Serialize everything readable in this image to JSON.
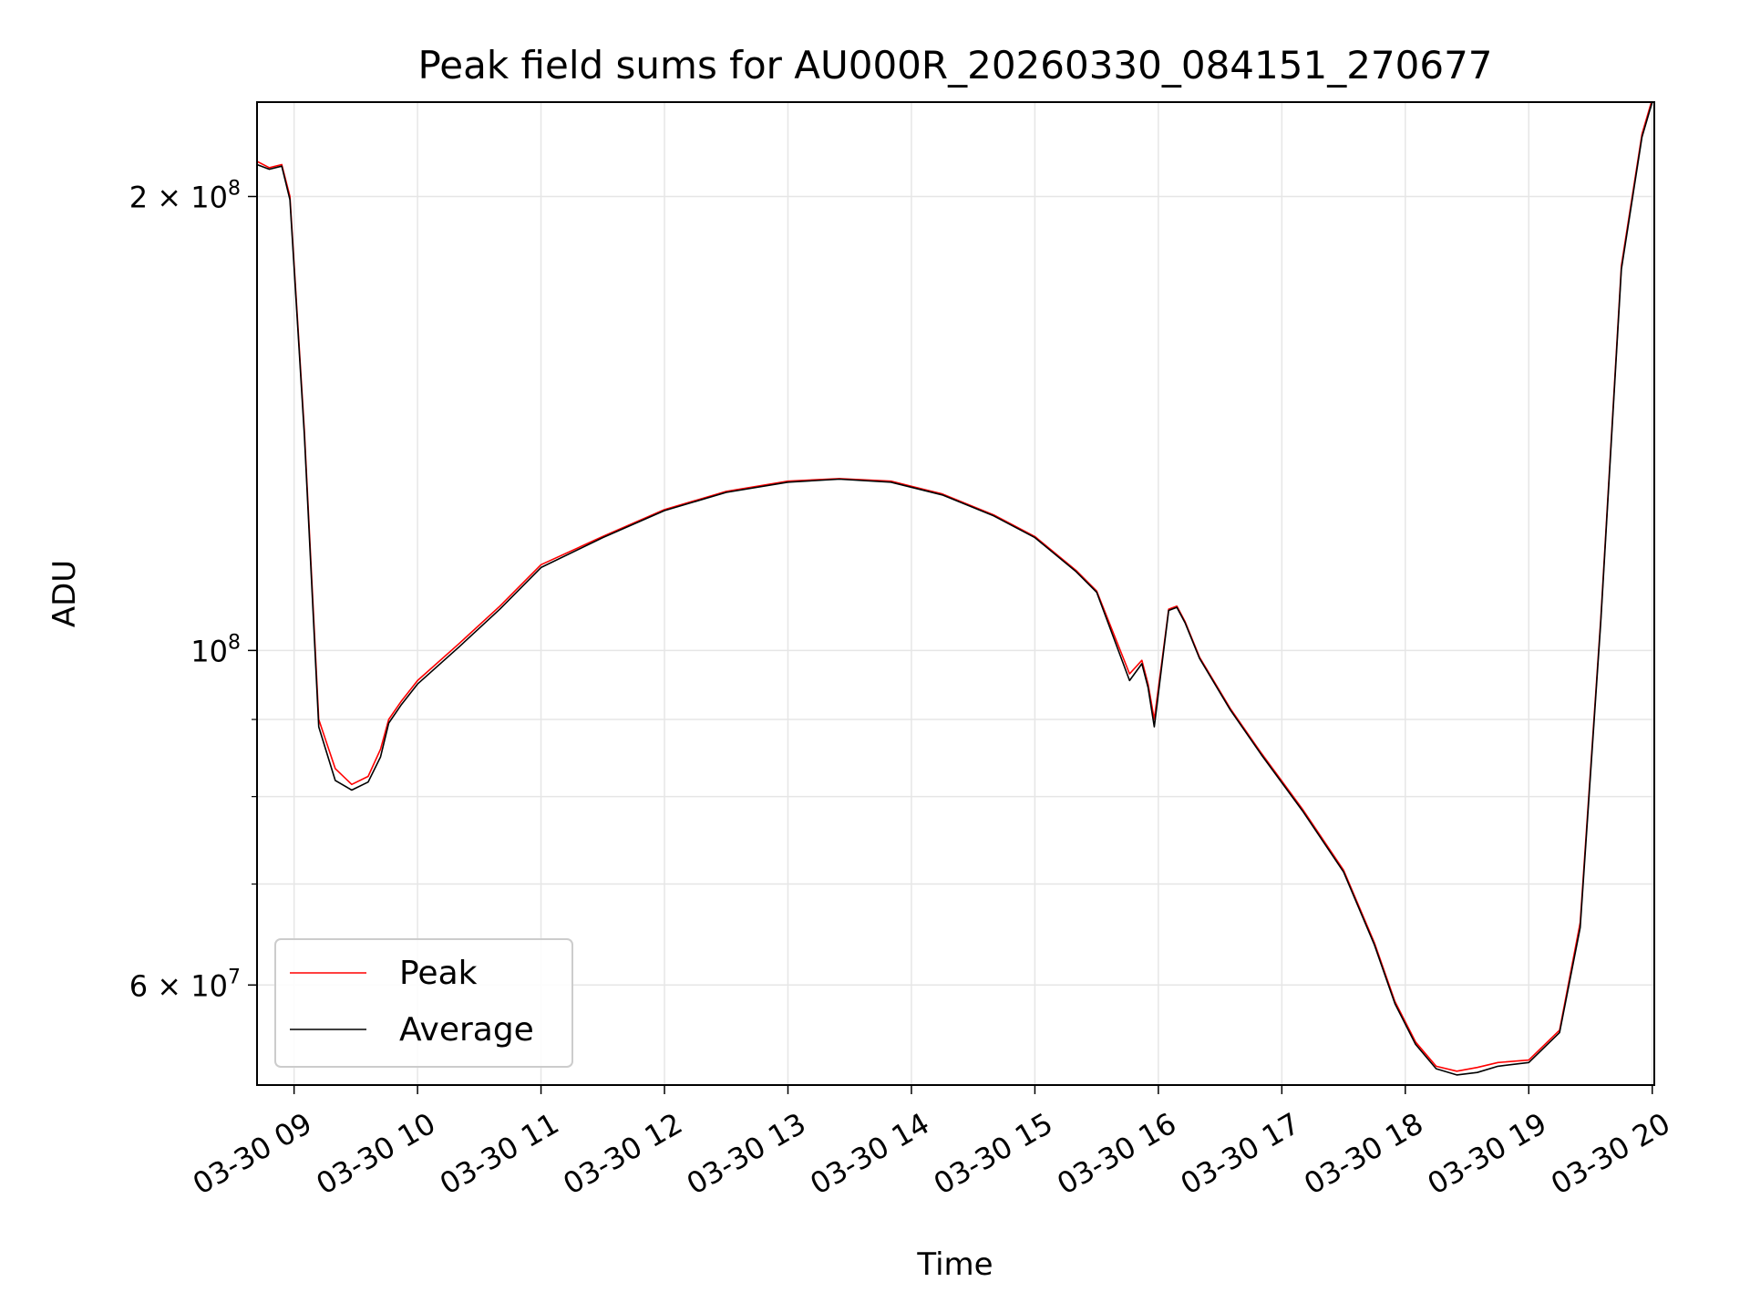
{
  "chart_data": {
    "type": "line",
    "title": "Peak field sums for AU000R_20260330_084151_270677",
    "xlabel": "Time",
    "ylabel": "ADU",
    "y_scale": "log",
    "grid": true,
    "legend_position": "lower-left",
    "xlim": [
      "2026-03-30 08:42",
      "2026-03-30 20:01"
    ],
    "ylim": [
      51500000,
      231000000
    ],
    "x_ticks": [
      {
        "value": "2026-03-30 09:00",
        "label": "03-30 09"
      },
      {
        "value": "2026-03-30 10:00",
        "label": "03-30 10"
      },
      {
        "value": "2026-03-30 11:00",
        "label": "03-30 11"
      },
      {
        "value": "2026-03-30 12:00",
        "label": "03-30 12"
      },
      {
        "value": "2026-03-30 13:00",
        "label": "03-30 13"
      },
      {
        "value": "2026-03-30 14:00",
        "label": "03-30 14"
      },
      {
        "value": "2026-03-30 15:00",
        "label": "03-30 15"
      },
      {
        "value": "2026-03-30 16:00",
        "label": "03-30 16"
      },
      {
        "value": "2026-03-30 17:00",
        "label": "03-30 17"
      },
      {
        "value": "2026-03-30 18:00",
        "label": "03-30 18"
      },
      {
        "value": "2026-03-30 19:00",
        "label": "03-30 19"
      },
      {
        "value": "2026-03-30 20:00",
        "label": "03-30 20"
      }
    ],
    "y_major_ticks": [
      {
        "value": 60000000,
        "mantissa": "6",
        "exponent": "7"
      },
      {
        "value": 100000000,
        "mantissa": "",
        "exponent": "8"
      },
      {
        "value": 200000000,
        "mantissa": "2",
        "exponent": "8"
      }
    ],
    "y_minor_ticks": [
      70000000,
      80000000,
      90000000
    ],
    "series": [
      {
        "name": "Peak",
        "color": "#ff0000",
        "x": [
          "2026-03-30 08:42",
          "2026-03-30 08:48",
          "2026-03-30 08:54",
          "2026-03-30 08:58",
          "2026-03-30 09:05",
          "2026-03-30 09:12",
          "2026-03-30 09:20",
          "2026-03-30 09:28",
          "2026-03-30 09:36",
          "2026-03-30 09:42",
          "2026-03-30 09:46",
          "2026-03-30 09:52",
          "2026-03-30 10:00",
          "2026-03-30 10:20",
          "2026-03-30 10:40",
          "2026-03-30 11:00",
          "2026-03-30 11:30",
          "2026-03-30 12:00",
          "2026-03-30 12:30",
          "2026-03-30 13:00",
          "2026-03-30 13:25",
          "2026-03-30 13:50",
          "2026-03-30 14:15",
          "2026-03-30 14:40",
          "2026-03-30 15:00",
          "2026-03-30 15:20",
          "2026-03-30 15:30",
          "2026-03-30 15:46",
          "2026-03-30 15:52",
          "2026-03-30 15:55",
          "2026-03-30 15:58",
          "2026-03-30 16:02",
          "2026-03-30 16:05",
          "2026-03-30 16:09",
          "2026-03-30 16:13",
          "2026-03-30 16:20",
          "2026-03-30 16:35",
          "2026-03-30 16:50",
          "2026-03-30 17:10",
          "2026-03-30 17:30",
          "2026-03-30 17:45",
          "2026-03-30 17:55",
          "2026-03-30 18:05",
          "2026-03-30 18:15",
          "2026-03-30 18:25",
          "2026-03-30 18:35",
          "2026-03-30 18:45",
          "2026-03-30 19:00",
          "2026-03-30 19:15",
          "2026-03-30 19:25",
          "2026-03-30 19:35",
          "2026-03-30 19:45",
          "2026-03-30 19:55",
          "2026-03-30 20:00"
        ],
        "y": [
          211000000,
          209000000,
          210000000,
          200000000,
          140000000,
          90000000,
          83500000,
          81500000,
          82500000,
          86000000,
          90000000,
          92500000,
          95500000,
          101000000,
          107000000,
          114000000,
          119000000,
          124000000,
          127500000,
          129500000,
          130000000,
          129500000,
          127000000,
          123000000,
          119000000,
          113000000,
          109500000,
          96500000,
          98500000,
          95000000,
          90000000,
          99000000,
          106500000,
          107000000,
          104500000,
          99000000,
          91500000,
          85500000,
          78500000,
          71500000,
          64000000,
          58500000,
          55000000,
          53000000,
          52600000,
          52900000,
          53300000,
          53500000,
          56000000,
          66000000,
          105000000,
          180000000,
          220000000,
          232000000
        ]
      },
      {
        "name": "Average",
        "color": "#000000",
        "x": [
          "2026-03-30 08:42",
          "2026-03-30 08:48",
          "2026-03-30 08:54",
          "2026-03-30 08:58",
          "2026-03-30 09:05",
          "2026-03-30 09:12",
          "2026-03-30 09:20",
          "2026-03-30 09:28",
          "2026-03-30 09:36",
          "2026-03-30 09:42",
          "2026-03-30 09:46",
          "2026-03-30 09:52",
          "2026-03-30 10:00",
          "2026-03-30 10:20",
          "2026-03-30 10:40",
          "2026-03-30 11:00",
          "2026-03-30 11:30",
          "2026-03-30 12:00",
          "2026-03-30 12:30",
          "2026-03-30 13:00",
          "2026-03-30 13:25",
          "2026-03-30 13:50",
          "2026-03-30 14:15",
          "2026-03-30 14:40",
          "2026-03-30 15:00",
          "2026-03-30 15:20",
          "2026-03-30 15:30",
          "2026-03-30 15:46",
          "2026-03-30 15:52",
          "2026-03-30 15:55",
          "2026-03-30 15:58",
          "2026-03-30 16:02",
          "2026-03-30 16:05",
          "2026-03-30 16:09",
          "2026-03-30 16:13",
          "2026-03-30 16:20",
          "2026-03-30 16:35",
          "2026-03-30 16:50",
          "2026-03-30 17:10",
          "2026-03-30 17:30",
          "2026-03-30 17:45",
          "2026-03-30 17:55",
          "2026-03-30 18:05",
          "2026-03-30 18:15",
          "2026-03-30 18:25",
          "2026-03-30 18:35",
          "2026-03-30 18:45",
          "2026-03-30 19:00",
          "2026-03-30 19:15",
          "2026-03-30 19:25",
          "2026-03-30 19:35",
          "2026-03-30 19:45",
          "2026-03-30 19:55",
          "2026-03-30 20:00"
        ],
        "y": [
          210000000,
          208500000,
          209500000,
          199000000,
          139000000,
          89000000,
          82000000,
          80800000,
          81800000,
          85000000,
          89500000,
          92000000,
          95000000,
          100500000,
          106500000,
          113500000,
          118800000,
          123800000,
          127300000,
          129300000,
          129900000,
          129300000,
          126800000,
          122800000,
          118800000,
          112800000,
          109300000,
          95500000,
          98000000,
          94500000,
          89000000,
          98500000,
          106300000,
          106800000,
          104300000,
          98800000,
          91300000,
          85300000,
          78300000,
          71300000,
          63800000,
          58300000,
          54800000,
          52800000,
          52300000,
          52500000,
          53000000,
          53300000,
          55800000,
          65500000,
          104500000,
          179000000,
          219000000,
          231000000
        ]
      }
    ]
  }
}
